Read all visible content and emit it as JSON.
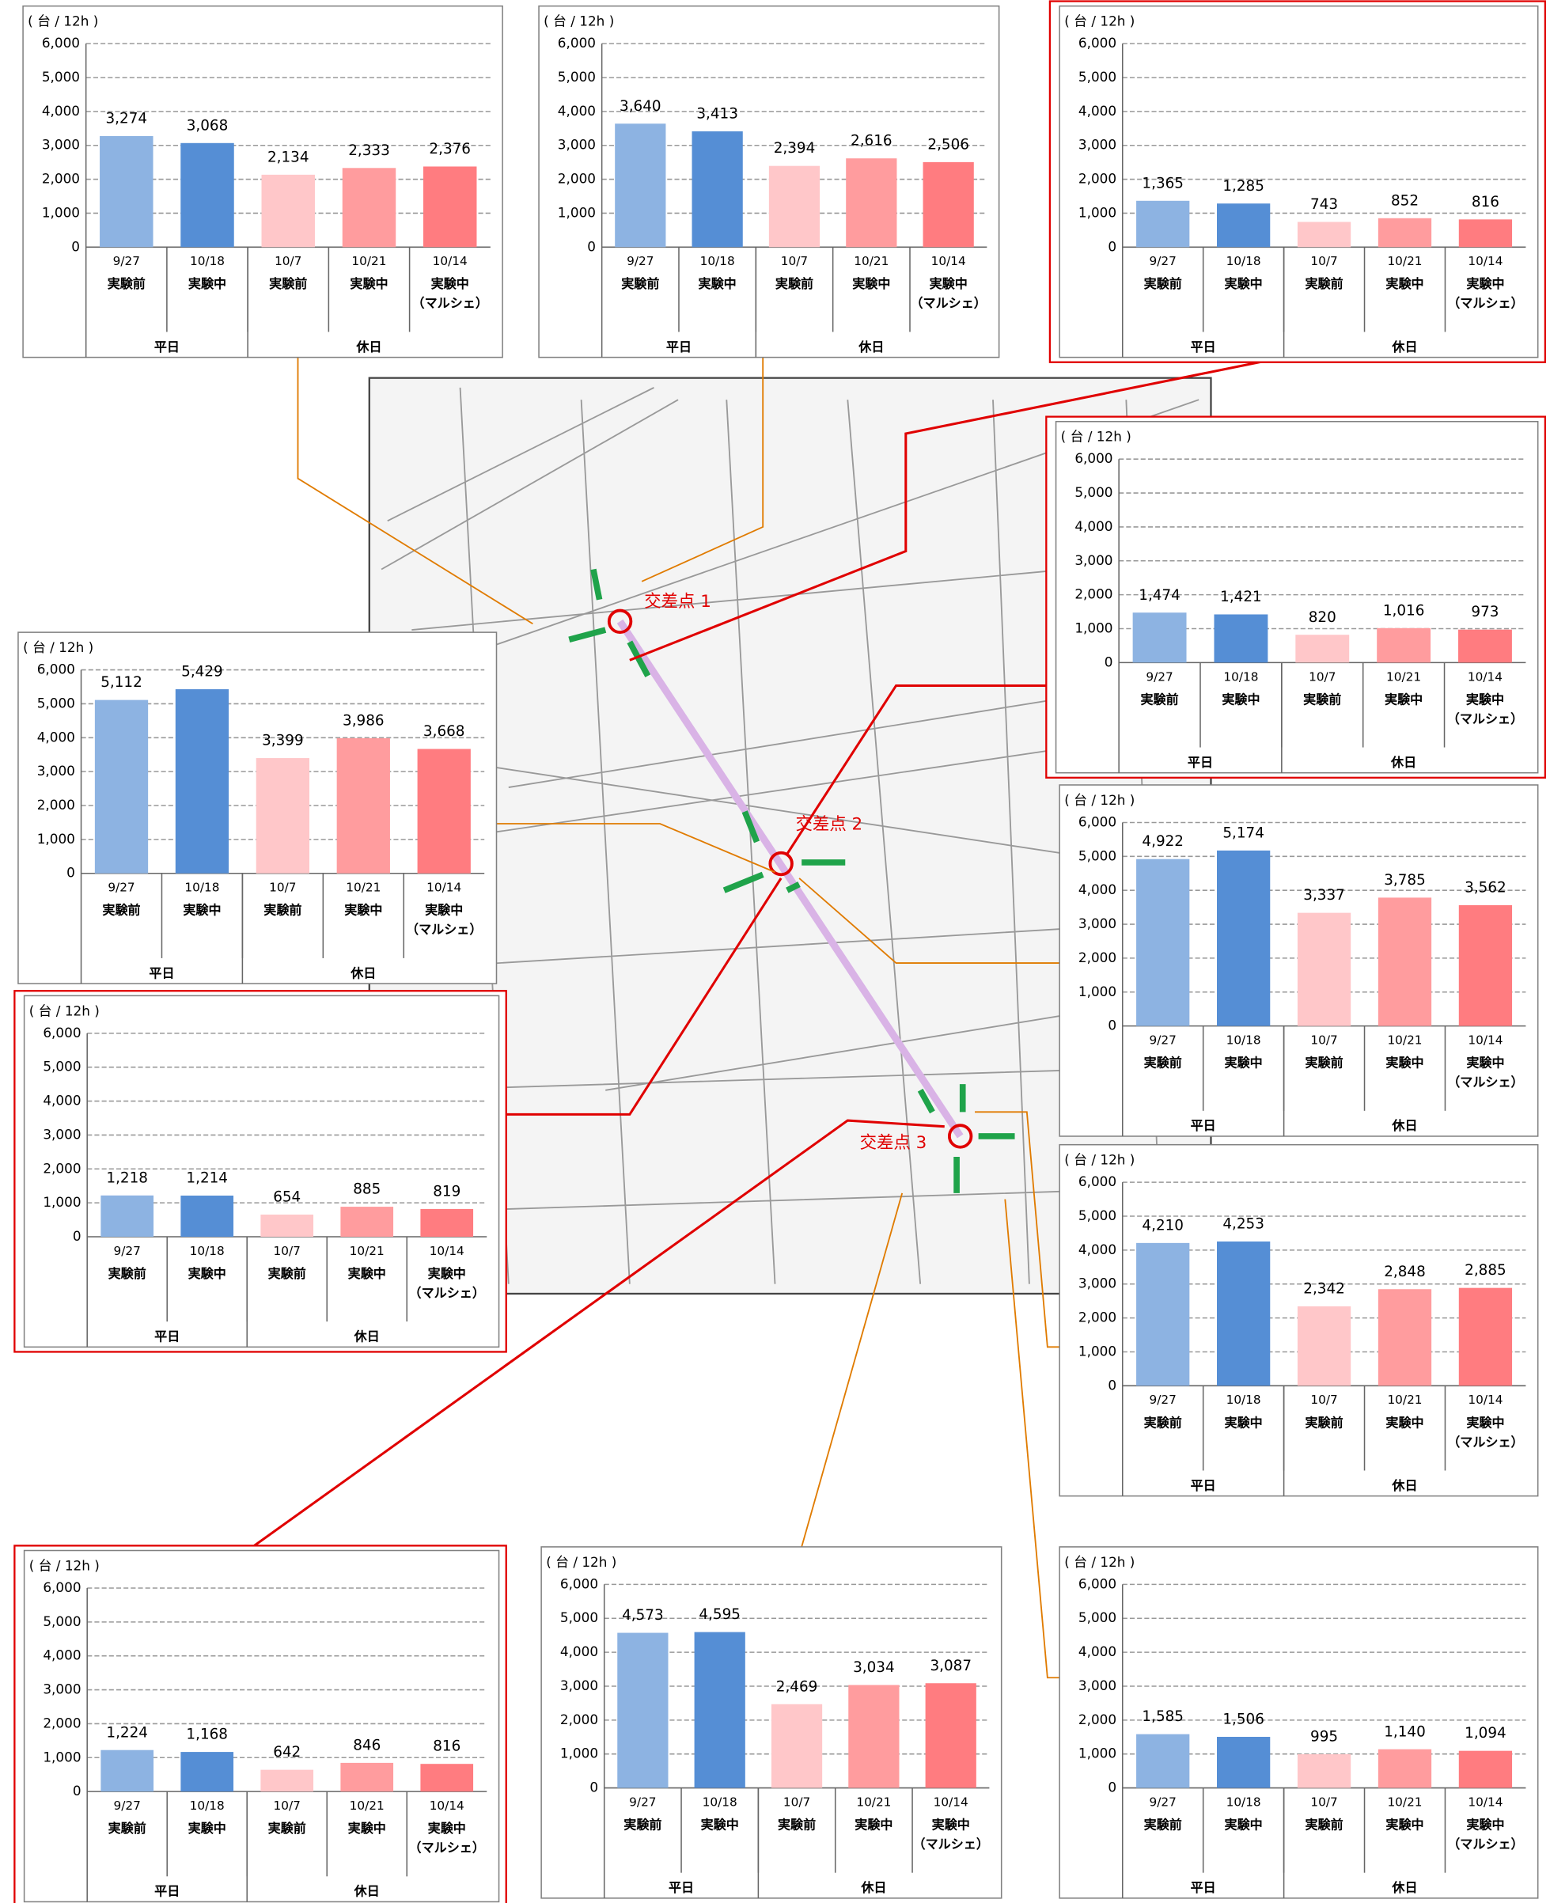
{
  "common": {
    "ylabel": "( 台 / 12h )",
    "categories": [
      "9/27",
      "10/18",
      "10/7",
      "10/21",
      "10/14"
    ],
    "sublabels": [
      [
        "実験前"
      ],
      [
        "実験中"
      ],
      [
        "実験前"
      ],
      [
        "実験中"
      ],
      [
        "実験中",
        "（マルシェ）"
      ]
    ],
    "groups": [
      {
        "label": "平日",
        "span": 2
      },
      {
        "label": "休日",
        "span": 3
      }
    ],
    "colors": [
      "#8db3e2",
      "#558ed5",
      "#ffc7c9",
      "#ff9c9e",
      "#ff7c80"
    ],
    "ylim": [
      0,
      6000
    ],
    "yticks": [
      0,
      {
        "value": 1000,
        "label": "1,000"
      },
      {
        "value": 2000,
        "label": "2,000"
      },
      {
        "value": 3000,
        "label": "3,000"
      },
      {
        "value": 4000,
        "label": "4,000"
      },
      {
        "value": 5000,
        "label": "5,000"
      },
      {
        "value": 6000,
        "label": "6,000"
      }
    ],
    "grid": true
  },
  "map": {
    "labels": [
      "交差点 1",
      "交差点 2",
      "交差点 3"
    ]
  },
  "chart_data": [
    {
      "type": "bar",
      "frame": "#808080",
      "values": [
        3274,
        3068,
        2134,
        2333,
        2376
      ],
      "value_labels": [
        "3,274",
        "3,068",
        "2,134",
        "2,333",
        "2,376"
      ]
    },
    {
      "type": "bar",
      "frame": "#808080",
      "values": [
        3640,
        3413,
        2394,
        2616,
        2506
      ],
      "value_labels": [
        "3,640",
        "3,413",
        "2,394",
        "2,616",
        "2,506"
      ]
    },
    {
      "type": "bar",
      "frame": "#e00000",
      "values": [
        1365,
        1285,
        743,
        852,
        816
      ],
      "value_labels": [
        "1,365",
        "1,285",
        "743",
        "852",
        "816"
      ]
    },
    {
      "type": "bar",
      "frame": "#e00000",
      "values": [
        1474,
        1421,
        820,
        1016,
        973
      ],
      "value_labels": [
        "1,474",
        "1,421",
        "820",
        "1,016",
        "973"
      ]
    },
    {
      "type": "bar",
      "frame": "#808080",
      "values": [
        5112,
        5429,
        3399,
        3986,
        3668
      ],
      "value_labels": [
        "5,112",
        "5,429",
        "3,399",
        "3,986",
        "3,668"
      ]
    },
    {
      "type": "bar",
      "frame": "#e00000",
      "values": [
        1218,
        1214,
        654,
        885,
        819
      ],
      "value_labels": [
        "1,218",
        "1,214",
        "654",
        "885",
        "819"
      ]
    },
    {
      "type": "bar",
      "frame": "#808080",
      "values": [
        4922,
        5174,
        3337,
        3785,
        3562
      ],
      "value_labels": [
        "4,922",
        "5,174",
        "3,337",
        "3,785",
        "3,562"
      ]
    },
    {
      "type": "bar",
      "frame": "#808080",
      "values": [
        4210,
        4253,
        2342,
        2848,
        2885
      ],
      "value_labels": [
        "4,210",
        "4,253",
        "2,342",
        "2,848",
        "2,885"
      ]
    },
    {
      "type": "bar",
      "frame": "#e00000",
      "values": [
        1224,
        1168,
        642,
        846,
        816
      ],
      "value_labels": [
        "1,224",
        "1,168",
        "642",
        "846",
        "816"
      ]
    },
    {
      "type": "bar",
      "frame": "#808080",
      "values": [
        4573,
        4595,
        2469,
        3034,
        3087
      ],
      "value_labels": [
        "4,573",
        "4,595",
        "2,469",
        "3,034",
        "3,087"
      ]
    },
    {
      "type": "bar",
      "frame": "#808080",
      "values": [
        1585,
        1506,
        995,
        1140,
        1094
      ],
      "value_labels": [
        "1,585",
        "1,506",
        "995",
        "1,140",
        "1,094"
      ]
    }
  ]
}
